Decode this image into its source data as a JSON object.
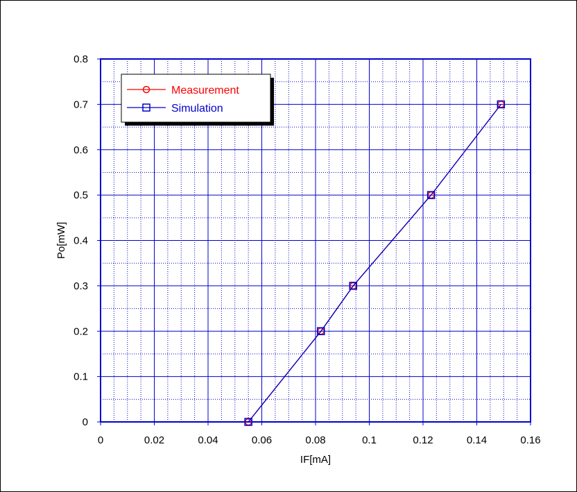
{
  "chart_data": {
    "type": "line",
    "title": "",
    "xlabel": "IF[mA]",
    "ylabel": "Po[mW]",
    "xlim": [
      0,
      0.16
    ],
    "ylim": [
      0,
      0.8
    ],
    "x_ticks": [
      "0",
      "0.02",
      "0.04",
      "0.06",
      "0.08",
      "0.1",
      "0.12",
      "0.14",
      "0.16"
    ],
    "y_ticks": [
      "0",
      "0.1",
      "0.2",
      "0.3",
      "0.4",
      "0.5",
      "0.6",
      "0.7",
      "0.8"
    ],
    "grid": true,
    "legend_position": "top-left",
    "series": [
      {
        "name": "Measurement",
        "color": "#ff0000",
        "marker": "circle",
        "x": [
          0.055,
          0.082,
          0.094,
          0.123,
          0.149
        ],
        "y": [
          0.0,
          0.2,
          0.3,
          0.5,
          0.7
        ]
      },
      {
        "name": "Simulation",
        "color": "#0000cc",
        "marker": "square",
        "x": [
          0.055,
          0.082,
          0.094,
          0.123,
          0.149
        ],
        "y": [
          0.0,
          0.2,
          0.3,
          0.5,
          0.7
        ]
      }
    ]
  },
  "colors": {
    "axis": "#0000cc",
    "grid": "#0000cc",
    "text": "#000000"
  }
}
